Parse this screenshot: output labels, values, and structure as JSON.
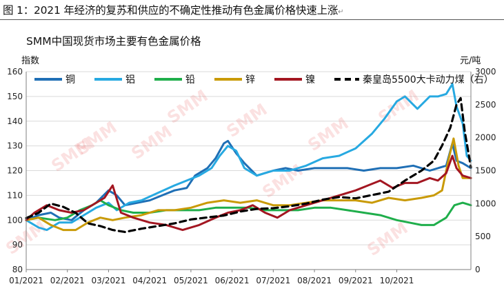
{
  "caption": "图 1：2021 年经济的复苏和供应的不确定性推动有色金属价格快速上涨",
  "caption_mark": "↵",
  "watermark": "SMM",
  "colors": {
    "copper": "#1f6fb5",
    "aluminum": "#27a9e1",
    "lead": "#1fae4b",
    "zinc": "#c99a06",
    "nickel": "#a31621",
    "coal": "#000000",
    "axis": "#7f7f7f",
    "grid": "#d9d9d9"
  },
  "chart_data": {
    "type": "line",
    "title": "SMM中国现货市场主要有色金属价格",
    "ylabel": "指数",
    "y2label": "元/吨",
    "ylim": [
      80,
      160
    ],
    "y2lim": [
      0,
      3000
    ],
    "yticks": [
      80,
      90,
      100,
      110,
      120,
      130,
      140,
      150,
      160
    ],
    "y2ticks": [
      0,
      500,
      1000,
      1500,
      2000,
      2500,
      3000
    ],
    "xticks": [
      "01/2021",
      "02/2021",
      "03/2021",
      "04/2021",
      "05/2021",
      "06/2021",
      "07/2021",
      "08/2021",
      "09/2021",
      "10/2021"
    ],
    "xrange": [
      0,
      10.8
    ],
    "legend_position": "top",
    "grid": "horizontal",
    "series": [
      {
        "name": "铜",
        "key": "copper",
        "axis": "left",
        "points": [
          [
            0,
            100
          ],
          [
            0.3,
            102
          ],
          [
            0.6,
            103
          ],
          [
            0.8,
            101
          ],
          [
            1.1,
            100
          ],
          [
            1.4,
            104
          ],
          [
            1.7,
            107
          ],
          [
            2.0,
            112
          ],
          [
            2.2,
            110
          ],
          [
            2.4,
            106
          ],
          [
            2.7,
            107
          ],
          [
            3.0,
            108
          ],
          [
            3.3,
            110
          ],
          [
            3.6,
            112
          ],
          [
            3.9,
            113
          ],
          [
            4.1,
            118
          ],
          [
            4.4,
            121
          ],
          [
            4.6,
            125
          ],
          [
            4.8,
            131
          ],
          [
            4.9,
            132
          ],
          [
            5.1,
            127
          ],
          [
            5.3,
            123
          ],
          [
            5.6,
            118
          ],
          [
            6.0,
            120
          ],
          [
            6.3,
            121
          ],
          [
            6.6,
            120
          ],
          [
            7.0,
            121
          ],
          [
            7.4,
            121
          ],
          [
            7.8,
            121
          ],
          [
            8.2,
            120
          ],
          [
            8.6,
            121
          ],
          [
            9.0,
            121
          ],
          [
            9.4,
            122
          ],
          [
            9.8,
            120
          ],
          [
            10.0,
            121
          ],
          [
            10.2,
            122
          ],
          [
            10.35,
            131
          ],
          [
            10.45,
            124
          ],
          [
            10.6,
            123
          ],
          [
            10.8,
            121
          ]
        ]
      },
      {
        "name": "铝",
        "key": "aluminum",
        "axis": "left",
        "points": [
          [
            0,
            100
          ],
          [
            0.3,
            97
          ],
          [
            0.5,
            96
          ],
          [
            0.8,
            99
          ],
          [
            1.1,
            99
          ],
          [
            1.4,
            102
          ],
          [
            1.7,
            105
          ],
          [
            2.0,
            107
          ],
          [
            2.2,
            104
          ],
          [
            2.5,
            107
          ],
          [
            2.8,
            108
          ],
          [
            3.2,
            111
          ],
          [
            3.6,
            114
          ],
          [
            3.9,
            116
          ],
          [
            4.2,
            118
          ],
          [
            4.5,
            121
          ],
          [
            4.7,
            126
          ],
          [
            4.9,
            130
          ],
          [
            5.1,
            128
          ],
          [
            5.3,
            121
          ],
          [
            5.6,
            118
          ],
          [
            6.0,
            120
          ],
          [
            6.4,
            120
          ],
          [
            6.8,
            122
          ],
          [
            7.2,
            125
          ],
          [
            7.6,
            126
          ],
          [
            8.0,
            129
          ],
          [
            8.4,
            135
          ],
          [
            8.7,
            141
          ],
          [
            9.0,
            148
          ],
          [
            9.2,
            150
          ],
          [
            9.5,
            145
          ],
          [
            9.8,
            150
          ],
          [
            10.0,
            150
          ],
          [
            10.2,
            151
          ],
          [
            10.35,
            155
          ],
          [
            10.45,
            146
          ],
          [
            10.6,
            139
          ],
          [
            10.7,
            126
          ],
          [
            10.8,
            124
          ]
        ]
      },
      {
        "name": "铅",
        "key": "lead",
        "axis": "left",
        "points": [
          [
            0,
            100
          ],
          [
            0.3,
            101
          ],
          [
            0.7,
            100
          ],
          [
            1.0,
            101
          ],
          [
            1.3,
            104
          ],
          [
            1.6,
            106
          ],
          [
            1.8,
            108
          ],
          [
            2.0,
            106
          ],
          [
            2.3,
            104
          ],
          [
            2.6,
            103
          ],
          [
            3.0,
            103
          ],
          [
            3.4,
            104
          ],
          [
            3.8,
            104
          ],
          [
            4.2,
            104
          ],
          [
            4.6,
            105
          ],
          [
            5.0,
            105
          ],
          [
            5.4,
            105
          ],
          [
            5.8,
            104
          ],
          [
            6.2,
            104
          ],
          [
            6.6,
            104
          ],
          [
            7.0,
            105
          ],
          [
            7.4,
            105
          ],
          [
            7.8,
            104
          ],
          [
            8.2,
            103
          ],
          [
            8.6,
            102
          ],
          [
            9.0,
            100
          ],
          [
            9.3,
            99
          ],
          [
            9.6,
            98
          ],
          [
            9.9,
            98
          ],
          [
            10.2,
            101
          ],
          [
            10.4,
            106
          ],
          [
            10.6,
            107
          ],
          [
            10.8,
            106
          ]
        ]
      },
      {
        "name": "锌",
        "key": "zinc",
        "axis": "left",
        "points": [
          [
            0,
            100
          ],
          [
            0.3,
            101
          ],
          [
            0.6,
            98
          ],
          [
            0.9,
            96
          ],
          [
            1.2,
            96
          ],
          [
            1.5,
            99
          ],
          [
            1.8,
            101
          ],
          [
            2.1,
            100
          ],
          [
            2.4,
            101
          ],
          [
            2.8,
            102
          ],
          [
            3.2,
            104
          ],
          [
            3.6,
            104
          ],
          [
            4.0,
            105
          ],
          [
            4.4,
            107
          ],
          [
            4.8,
            108
          ],
          [
            5.2,
            107
          ],
          [
            5.6,
            108
          ],
          [
            6.0,
            106
          ],
          [
            6.4,
            106
          ],
          [
            6.8,
            107
          ],
          [
            7.2,
            108
          ],
          [
            7.6,
            108
          ],
          [
            8.0,
            108
          ],
          [
            8.4,
            107
          ],
          [
            8.8,
            109
          ],
          [
            9.2,
            108
          ],
          [
            9.6,
            109
          ],
          [
            9.9,
            110
          ],
          [
            10.1,
            112
          ],
          [
            10.25,
            124
          ],
          [
            10.38,
            133
          ],
          [
            10.5,
            122
          ],
          [
            10.6,
            117
          ],
          [
            10.8,
            117
          ]
        ]
      },
      {
        "name": "镍",
        "key": "nickel",
        "axis": "left",
        "points": [
          [
            0,
            100
          ],
          [
            0.2,
            103
          ],
          [
            0.5,
            106
          ],
          [
            0.8,
            104
          ],
          [
            1.1,
            103
          ],
          [
            1.4,
            104
          ],
          [
            1.7,
            107
          ],
          [
            1.9,
            109
          ],
          [
            2.1,
            114
          ],
          [
            2.3,
            103
          ],
          [
            2.6,
            101
          ],
          [
            3.0,
            99
          ],
          [
            3.4,
            98
          ],
          [
            3.8,
            96
          ],
          [
            4.2,
            98
          ],
          [
            4.6,
            101
          ],
          [
            4.9,
            103
          ],
          [
            5.2,
            104
          ],
          [
            5.5,
            106
          ],
          [
            5.8,
            103
          ],
          [
            6.1,
            101
          ],
          [
            6.4,
            104
          ],
          [
            6.8,
            106
          ],
          [
            7.2,
            108
          ],
          [
            7.6,
            110
          ],
          [
            8.0,
            112
          ],
          [
            8.3,
            114
          ],
          [
            8.6,
            116
          ],
          [
            8.9,
            113
          ],
          [
            9.2,
            115
          ],
          [
            9.5,
            115
          ],
          [
            9.8,
            117
          ],
          [
            10.0,
            116
          ],
          [
            10.2,
            119
          ],
          [
            10.35,
            126
          ],
          [
            10.45,
            121
          ],
          [
            10.6,
            118
          ],
          [
            10.8,
            117
          ]
        ]
      },
      {
        "name": "秦皇岛5500大卡动力煤（右）",
        "key": "coal",
        "axis": "right",
        "points": [
          [
            0,
            780
          ],
          [
            0.3,
            860
          ],
          [
            0.6,
            1000
          ],
          [
            0.9,
            950
          ],
          [
            1.2,
            860
          ],
          [
            1.5,
            700
          ],
          [
            1.8,
            660
          ],
          [
            2.1,
            600
          ],
          [
            2.4,
            570
          ],
          [
            2.8,
            620
          ],
          [
            3.2,
            660
          ],
          [
            3.6,
            700
          ],
          [
            4.0,
            760
          ],
          [
            4.4,
            790
          ],
          [
            4.8,
            820
          ],
          [
            5.2,
            880
          ],
          [
            5.6,
            920
          ],
          [
            6.0,
            930
          ],
          [
            6.4,
            960
          ],
          [
            6.8,
            1000
          ],
          [
            7.2,
            1060
          ],
          [
            7.6,
            1100
          ],
          [
            8.0,
            1080
          ],
          [
            8.4,
            1130
          ],
          [
            8.8,
            1180
          ],
          [
            9.2,
            1350
          ],
          [
            9.6,
            1500
          ],
          [
            9.9,
            1650
          ],
          [
            10.1,
            1880
          ],
          [
            10.3,
            2150
          ],
          [
            10.45,
            2500
          ],
          [
            10.55,
            2600
          ],
          [
            10.65,
            2100
          ],
          [
            10.8,
            1550
          ]
        ]
      }
    ]
  }
}
